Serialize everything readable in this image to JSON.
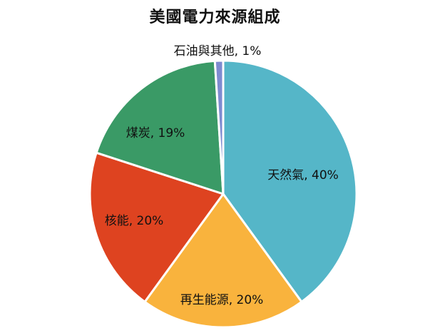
{
  "chart_data": {
    "type": "pie",
    "title": "美國電力來源組成",
    "slices": [
      {
        "label": "天然氣, 40%",
        "name": "天然氣",
        "value": 40,
        "color": "#55B6C8"
      },
      {
        "label": "再生能源, 20%",
        "name": "再生能源",
        "value": 20,
        "color": "#F9B33D"
      },
      {
        "label": "核能, 20%",
        "name": "核能",
        "value": 20,
        "color": "#DE4320"
      },
      {
        "label": "煤炭, 19%",
        "name": "煤炭",
        "value": 19,
        "color": "#3A9A66"
      },
      {
        "label": "石油與其他, 1%",
        "name": "石油與其他",
        "value": 1,
        "color": "#7E8BD0"
      }
    ],
    "legend": "none"
  }
}
